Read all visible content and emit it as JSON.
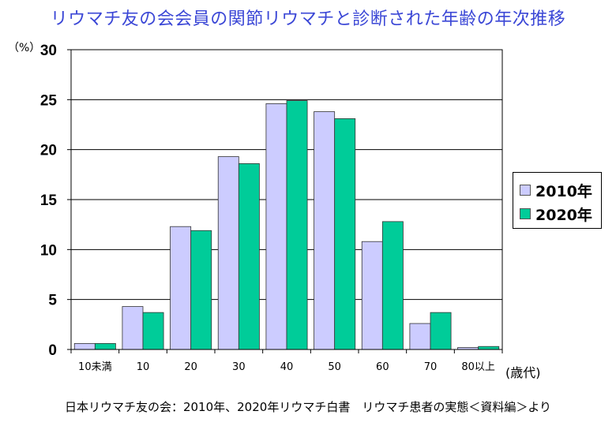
{
  "title": "リウマチ友の会会員の関節リウマチと診断された年齢の年次推移",
  "y_unit": "（%）",
  "x_unit": "(歳代)",
  "source": "日本リウマチ友の会：2010年、2020年リウマチ白書　リウマチ患者の実態＜資料編＞より",
  "colors": {
    "s2010": "#ccccff",
    "s2020": "#00cc99"
  },
  "chart_data": {
    "type": "bar",
    "title": "リウマチ友の会会員の関節リウマチと診断された年齢の年次推移",
    "xlabel": "(歳代)",
    "ylabel": "（%）",
    "ylim": [
      0,
      30
    ],
    "yticks": [
      0,
      5,
      10,
      15,
      20,
      25,
      30
    ],
    "grid": true,
    "legend_position": "right",
    "categories": [
      "10未満",
      "10",
      "20",
      "30",
      "40",
      "50",
      "60",
      "70",
      "80以上"
    ],
    "series": [
      {
        "name": "2010年",
        "color": "#ccccff",
        "values": [
          0.6,
          4.3,
          12.3,
          19.3,
          24.6,
          23.8,
          10.8,
          2.6,
          0.2
        ]
      },
      {
        "name": "2020年",
        "color": "#00cc99",
        "values": [
          0.6,
          3.7,
          11.9,
          18.6,
          24.9,
          23.1,
          12.8,
          3.7,
          0.3
        ]
      }
    ]
  }
}
